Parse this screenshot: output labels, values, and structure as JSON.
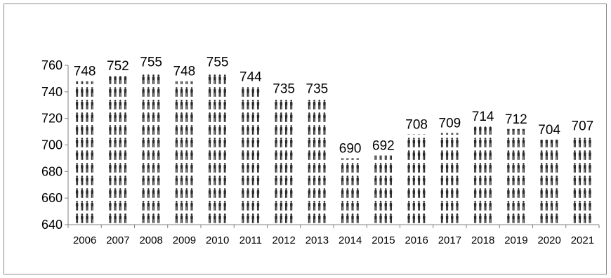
{
  "chart_data": {
    "type": "bar",
    "categories": [
      "2006",
      "2007",
      "2008",
      "2009",
      "2010",
      "2011",
      "2012",
      "2013",
      "2014",
      "2015",
      "2016",
      "2017",
      "2018",
      "2019",
      "2020",
      "2021"
    ],
    "values": [
      748,
      752,
      755,
      748,
      755,
      744,
      735,
      735,
      690,
      692,
      708,
      709,
      714,
      712,
      704,
      707
    ],
    "data_labels": [
      "748",
      "752",
      "755",
      "748",
      "755",
      "744",
      "735",
      "735",
      "690",
      "692",
      "708",
      "709",
      "714",
      "712",
      "704",
      "707"
    ],
    "yticks": [
      "640",
      "660",
      "680",
      "700",
      "720",
      "740",
      "760"
    ],
    "ylim": [
      640,
      760
    ],
    "title": "",
    "xlabel": "",
    "ylabel": "",
    "grid": false,
    "legend": "none",
    "bar_style": "pictogram of stacked human figures",
    "colors": {
      "figure": "#2b2b2b",
      "axis": "#808080",
      "border": "#8c8c8c",
      "background": "#ffffff"
    }
  }
}
